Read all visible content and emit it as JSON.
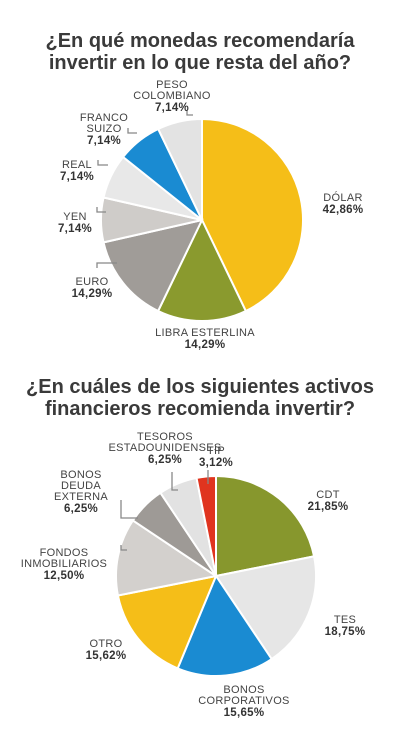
{
  "chart_data": [
    {
      "type": "pie",
      "title": "¿En qué monedas recomendaría invertir en lo que resta del año?",
      "title_lines": [
        "¿En qué monedas recomendaría",
        "invertir en lo que resta del año?"
      ],
      "slices": [
        {
          "label_lines": [
            "DÓLAR"
          ],
          "value": 42.86,
          "value_label": "42,86%",
          "color": "#F5BE18"
        },
        {
          "label_lines": [
            "LIBRA ESTERLINA"
          ],
          "value": 14.29,
          "value_label": "14,29%",
          "color": "#8A9A2E"
        },
        {
          "label_lines": [
            "EURO"
          ],
          "value": 14.29,
          "value_label": "14,29%",
          "color": "#A09C98"
        },
        {
          "label_lines": [
            "YEN"
          ],
          "value": 7.14,
          "value_label": "7,14%",
          "color": "#CFCCC9"
        },
        {
          "label_lines": [
            "REAL"
          ],
          "value": 7.14,
          "value_label": "7,14%",
          "color": "#E8E8E8"
        },
        {
          "label_lines": [
            "FRANCO",
            "SUIZO"
          ],
          "value": 7.14,
          "value_label": "7,14%",
          "color": "#1A8BD2"
        },
        {
          "label_lines": [
            "PESO",
            "COLOMBIANO"
          ],
          "value": 7.14,
          "value_label": "7,14%",
          "color": "#E3E3E3"
        }
      ]
    },
    {
      "type": "pie",
      "title": "¿En cuáles de los siguientes activos financieros recomienda invertir?",
      "title_lines": [
        "¿En cuáles de los siguientes activos",
        "financieros recomienda invertir?"
      ],
      "slices": [
        {
          "label_lines": [
            "CDT"
          ],
          "value": 21.85,
          "value_label": "21,85%",
          "color": "#87972D"
        },
        {
          "label_lines": [
            "TES"
          ],
          "value": 18.75,
          "value_label": "18,75%",
          "color": "#E6E6E6"
        },
        {
          "label_lines": [
            "BONOS",
            "CORPORATIVOS"
          ],
          "value": 15.65,
          "value_label": "15,65%",
          "color": "#1A8BD2"
        },
        {
          "label_lines": [
            "OTRO"
          ],
          "value": 15.62,
          "value_label": "15,62%",
          "color": "#F5BE18"
        },
        {
          "label_lines": [
            "FONDOS",
            "INMOBILIARIOS"
          ],
          "value": 12.5,
          "value_label": "12,50%",
          "color": "#D3D0CD"
        },
        {
          "label_lines": [
            "BONOS",
            "DEUDA",
            "EXTERNA"
          ],
          "value": 6.25,
          "value_label": "6,25%",
          "color": "#9E9A96"
        },
        {
          "label_lines": [
            "TESOROS",
            "ESTADOUNIDENSES"
          ],
          "value": 6.25,
          "value_label": "6,25%",
          "color": "#E2E2E2"
        },
        {
          "label_lines": [
            "TIP"
          ],
          "value": 3.12,
          "value_label": "3,12%",
          "color": "#E0341F"
        }
      ]
    }
  ]
}
